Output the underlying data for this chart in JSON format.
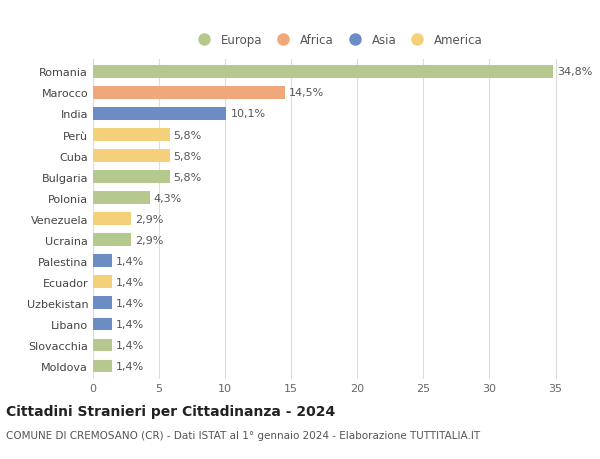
{
  "countries": [
    "Romania",
    "Marocco",
    "India",
    "Perù",
    "Cuba",
    "Bulgaria",
    "Polonia",
    "Venezuela",
    "Ucraina",
    "Palestina",
    "Ecuador",
    "Uzbekistan",
    "Libano",
    "Slovacchia",
    "Moldova"
  ],
  "values": [
    34.8,
    14.5,
    10.1,
    5.8,
    5.8,
    5.8,
    4.3,
    2.9,
    2.9,
    1.4,
    1.4,
    1.4,
    1.4,
    1.4,
    1.4
  ],
  "labels": [
    "34,8%",
    "14,5%",
    "10,1%",
    "5,8%",
    "5,8%",
    "5,8%",
    "4,3%",
    "2,9%",
    "2,9%",
    "1,4%",
    "1,4%",
    "1,4%",
    "1,4%",
    "1,4%",
    "1,4%"
  ],
  "continents": [
    "Europa",
    "Africa",
    "Asia",
    "America",
    "America",
    "Europa",
    "Europa",
    "America",
    "Europa",
    "Asia",
    "America",
    "Asia",
    "Asia",
    "Europa",
    "Europa"
  ],
  "continent_colors": {
    "Europa": "#b5c98e",
    "Africa": "#f0a87a",
    "Asia": "#6b8dc4",
    "America": "#f5d07a"
  },
  "legend_order": [
    "Europa",
    "Africa",
    "Asia",
    "America"
  ],
  "title": "Cittadini Stranieri per Cittadinanza - 2024",
  "subtitle": "COMUNE DI CREMOSANO (CR) - Dati ISTAT al 1° gennaio 2024 - Elaborazione TUTTITALIA.IT",
  "xlim": [
    0,
    37
  ],
  "xticks": [
    0,
    5,
    10,
    15,
    20,
    25,
    30,
    35
  ],
  "background_color": "#ffffff",
  "axes_background": "#ffffff",
  "grid_color": "#dddddd",
  "bar_height": 0.6,
  "label_fontsize": 8,
  "tick_fontsize": 8,
  "title_fontsize": 10,
  "subtitle_fontsize": 7.5
}
